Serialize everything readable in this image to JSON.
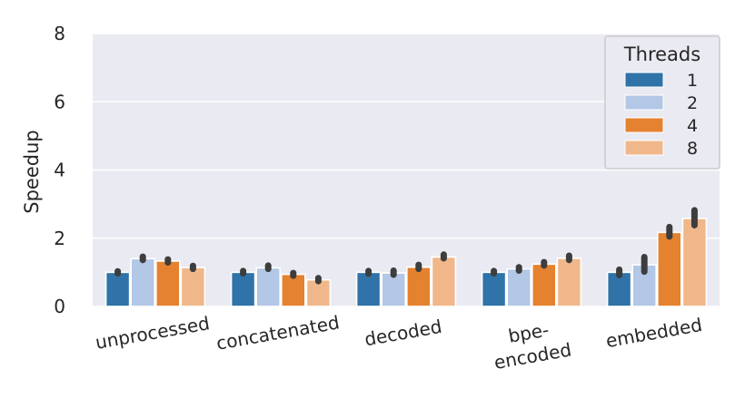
{
  "chart_data": {
    "type": "bar",
    "title": "",
    "xlabel": "",
    "ylabel": "Speedup",
    "ylim": [
      0,
      8
    ],
    "yticks": [
      0,
      2,
      4,
      6,
      8
    ],
    "grid": true,
    "legend_placement": "top-right",
    "legend_title": "Threads",
    "categories": [
      "unprocessed",
      "concatenated",
      "decoded",
      "bpe-\nencoded",
      "embedded"
    ],
    "series": [
      {
        "name": "1",
        "color": "#2f73a8",
        "values": [
          1.0,
          1.0,
          1.0,
          1.0,
          1.0
        ],
        "err_low": [
          0.97,
          0.97,
          0.96,
          0.97,
          0.92
        ],
        "err_high": [
          1.03,
          1.04,
          1.04,
          1.04,
          1.08
        ]
      },
      {
        "name": "2",
        "color": "#b3c7e6",
        "values": [
          1.4,
          1.13,
          0.98,
          1.1,
          1.22
        ],
        "err_low": [
          1.36,
          1.1,
          0.93,
          1.05,
          1.02
        ],
        "err_high": [
          1.46,
          1.2,
          1.05,
          1.15,
          1.45
        ]
      },
      {
        "name": "4",
        "color": "#e5822f",
        "values": [
          1.33,
          0.94,
          1.15,
          1.24,
          2.17
        ],
        "err_low": [
          1.29,
          0.9,
          1.1,
          1.2,
          2.05
        ],
        "err_high": [
          1.38,
          0.98,
          1.22,
          1.3,
          2.33
        ]
      },
      {
        "name": "8",
        "color": "#f0b88a",
        "values": [
          1.14,
          0.78,
          1.45,
          1.41,
          2.58
        ],
        "err_low": [
          1.1,
          0.74,
          1.41,
          1.36,
          2.38
        ],
        "err_high": [
          1.19,
          0.83,
          1.52,
          1.49,
          2.82
        ]
      }
    ]
  }
}
